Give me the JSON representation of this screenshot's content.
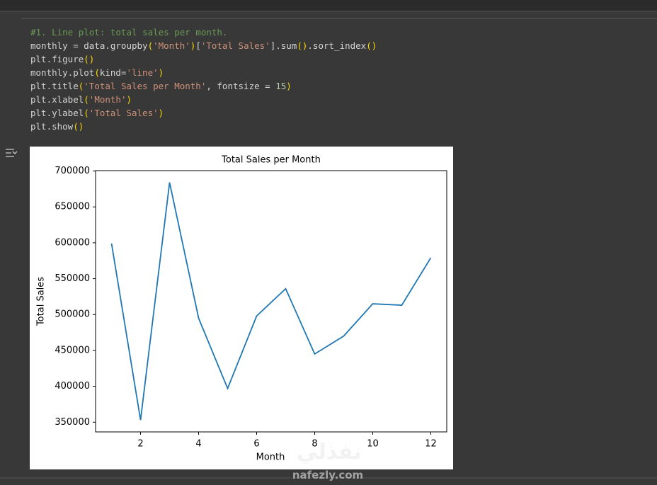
{
  "code": {
    "colors": {
      "comment": "#6a9955",
      "plain": "#d4d4d4",
      "paren": "#ffd700",
      "string": "#ce9178",
      "number": "#b5cea8"
    },
    "lines": [
      [
        {
          "text": "#1. Line plot: total sales per month.",
          "kind": "comment"
        }
      ],
      [
        {
          "text": "monthly = data.groupby",
          "kind": "plain"
        },
        {
          "text": "(",
          "kind": "paren"
        },
        {
          "text": "'Month'",
          "kind": "string"
        },
        {
          "text": ")",
          "kind": "paren"
        },
        {
          "text": "[",
          "kind": "plain"
        },
        {
          "text": "'Total Sales'",
          "kind": "string"
        },
        {
          "text": "].sum",
          "kind": "plain"
        },
        {
          "text": "()",
          "kind": "paren"
        },
        {
          "text": ".sort_index",
          "kind": "plain"
        },
        {
          "text": "()",
          "kind": "paren"
        }
      ],
      [
        {
          "text": "plt.figure",
          "kind": "plain"
        },
        {
          "text": "()",
          "kind": "paren"
        }
      ],
      [
        {
          "text": "monthly.plot",
          "kind": "plain"
        },
        {
          "text": "(",
          "kind": "paren"
        },
        {
          "text": "kind=",
          "kind": "plain"
        },
        {
          "text": "'line'",
          "kind": "string"
        },
        {
          "text": ")",
          "kind": "paren"
        }
      ],
      [
        {
          "text": "plt.title",
          "kind": "plain"
        },
        {
          "text": "(",
          "kind": "paren"
        },
        {
          "text": "'Total Sales per Month'",
          "kind": "string"
        },
        {
          "text": ", fontsize = ",
          "kind": "plain"
        },
        {
          "text": "15",
          "kind": "number"
        },
        {
          "text": ")",
          "kind": "paren"
        }
      ],
      [
        {
          "text": "plt.xlabel",
          "kind": "plain"
        },
        {
          "text": "(",
          "kind": "paren"
        },
        {
          "text": "'Month'",
          "kind": "string"
        },
        {
          "text": ")",
          "kind": "paren"
        }
      ],
      [
        {
          "text": "plt.ylabel",
          "kind": "plain"
        },
        {
          "text": "(",
          "kind": "paren"
        },
        {
          "text": "'Total Sales'",
          "kind": "string"
        },
        {
          "text": ")",
          "kind": "paren"
        }
      ],
      [
        {
          "text": "plt.show",
          "kind": "plain"
        },
        {
          "text": "()",
          "kind": "paren"
        }
      ]
    ]
  },
  "watermark": {
    "arabic": "نفذلي",
    "site": "nafezly.com"
  },
  "chart_data": {
    "type": "line",
    "title": "Total Sales per Month",
    "x_label": "Month",
    "y_label": "Total Sales",
    "x": [
      1,
      2,
      3,
      4,
      5,
      6,
      7,
      8,
      9,
      10,
      11,
      12
    ],
    "series": [
      {
        "name": "Total Sales",
        "color": "#1f77b4",
        "values": [
          599000,
          353000,
          684000,
          495000,
          397000,
          498000,
          536000,
          445000,
          470000,
          515000,
          513000,
          579000
        ]
      }
    ],
    "xlim": [
      0.45,
      12.55
    ],
    "xticks": [
      2,
      4,
      6,
      8,
      10,
      12
    ],
    "ylim": [
      336450,
      700550
    ],
    "yticks": [
      350000,
      400000,
      450000,
      500000,
      550000,
      600000,
      650000,
      700000
    ],
    "grid": false
  }
}
